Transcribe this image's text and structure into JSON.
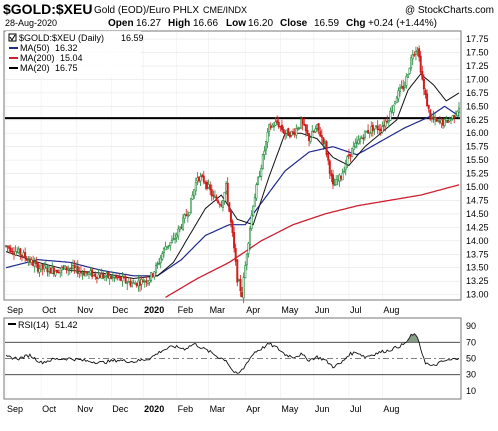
{
  "chart_data": {
    "type": "candlestick",
    "symbol": "$GOLD:$XEU",
    "description": "Gold (EOD)/Euro PHLX",
    "exchange": "CME/INDX",
    "source": "@ StockCharts.com",
    "date": "28-Aug-2020",
    "quote": {
      "open": "16.27",
      "high": "16.66",
      "low": "16.20",
      "close": "16.59",
      "chg": "+0.24 (+1.44%)"
    },
    "labels": {
      "open": "Open",
      "high": "High",
      "low": "Low",
      "close": "Close",
      "chg": "Chg"
    },
    "legend": [
      {
        "name": "$GOLD:$XEU (Daily)",
        "value": "16.59",
        "color": "#000000"
      },
      {
        "name": "MA(50)",
        "value": "16.32",
        "color": "#1f2a8c"
      },
      {
        "name": "MA(200)",
        "value": "15.04",
        "color": "#cc1f2f"
      },
      {
        "name": "MA(20)",
        "value": "16.75",
        "color": "#000000"
      }
    ],
    "price_axis": {
      "ylim": [
        12.9,
        17.9
      ],
      "ticks": [
        13.0,
        13.25,
        13.5,
        13.75,
        14.0,
        14.25,
        14.5,
        14.75,
        15.0,
        15.25,
        15.5,
        15.75,
        16.0,
        16.25,
        16.5,
        16.75,
        17.0,
        17.25,
        17.5,
        17.75
      ]
    },
    "horizontal_line": 16.28,
    "x_axis": {
      "labels": [
        "Sep",
        "Oct",
        "Nov",
        "Dec",
        "2020",
        "Feb",
        "Mar",
        "Apr",
        "May",
        "Jun",
        "Jul",
        "Aug"
      ],
      "bold": [
        "2020"
      ]
    },
    "price_anchors": [
      [
        0,
        13.9
      ],
      [
        10,
        13.75
      ],
      [
        20,
        13.5
      ],
      [
        30,
        13.45
      ],
      [
        40,
        13.5
      ],
      [
        50,
        13.4
      ],
      [
        60,
        13.35
      ],
      [
        70,
        13.3
      ],
      [
        80,
        13.2
      ],
      [
        90,
        13.3
      ],
      [
        95,
        13.55
      ],
      [
        100,
        13.9
      ],
      [
        105,
        14.0
      ],
      [
        110,
        14.3
      ],
      [
        115,
        14.6
      ],
      [
        120,
        15.2
      ],
      [
        125,
        15.1
      ],
      [
        130,
        14.8
      ],
      [
        135,
        14.7
      ],
      [
        138,
        15.0
      ],
      [
        142,
        14.1
      ],
      [
        145,
        13.3
      ],
      [
        148,
        13.0
      ],
      [
        151,
        13.8
      ],
      [
        155,
        14.7
      ],
      [
        160,
        15.4
      ],
      [
        165,
        16.1
      ],
      [
        170,
        16.2
      ],
      [
        175,
        16.0
      ],
      [
        180,
        16.0
      ],
      [
        185,
        16.2
      ],
      [
        190,
        15.9
      ],
      [
        195,
        16.1
      ],
      [
        200,
        15.8
      ],
      [
        205,
        15.0
      ],
      [
        210,
        15.2
      ],
      [
        215,
        15.6
      ],
      [
        220,
        15.8
      ],
      [
        225,
        16.0
      ],
      [
        230,
        16.1
      ],
      [
        235,
        16.1
      ],
      [
        240,
        16.3
      ],
      [
        245,
        16.7
      ],
      [
        250,
        16.9
      ],
      [
        255,
        17.5
      ],
      [
        258,
        17.6
      ],
      [
        262,
        16.8
      ],
      [
        266,
        16.3
      ],
      [
        270,
        16.2
      ],
      [
        275,
        16.2
      ],
      [
        280,
        16.3
      ],
      [
        284,
        16.5
      ]
    ],
    "ma20_anchors": [
      [
        0,
        13.8
      ],
      [
        20,
        13.6
      ],
      [
        40,
        13.45
      ],
      [
        60,
        13.4
      ],
      [
        80,
        13.3
      ],
      [
        95,
        13.35
      ],
      [
        105,
        13.6
      ],
      [
        115,
        14.1
      ],
      [
        125,
        14.6
      ],
      [
        135,
        14.85
      ],
      [
        145,
        14.4
      ],
      [
        155,
        14.3
      ],
      [
        165,
        15.2
      ],
      [
        175,
        16.0
      ],
      [
        185,
        16.0
      ],
      [
        195,
        15.9
      ],
      [
        205,
        15.55
      ],
      [
        215,
        15.4
      ],
      [
        225,
        15.75
      ],
      [
        235,
        16.0
      ],
      [
        245,
        16.25
      ],
      [
        252,
        16.8
      ],
      [
        260,
        17.1
      ],
      [
        268,
        16.9
      ],
      [
        276,
        16.6
      ],
      [
        284,
        16.75
      ]
    ],
    "ma50_anchors": [
      [
        0,
        13.5
      ],
      [
        20,
        13.65
      ],
      [
        40,
        13.6
      ],
      [
        60,
        13.45
      ],
      [
        80,
        13.35
      ],
      [
        95,
        13.35
      ],
      [
        110,
        13.65
      ],
      [
        125,
        14.1
      ],
      [
        140,
        14.3
      ],
      [
        150,
        14.3
      ],
      [
        160,
        14.7
      ],
      [
        175,
        15.3
      ],
      [
        190,
        15.65
      ],
      [
        205,
        15.75
      ],
      [
        220,
        15.6
      ],
      [
        235,
        15.85
      ],
      [
        250,
        16.1
      ],
      [
        265,
        16.3
      ],
      [
        275,
        16.5
      ],
      [
        284,
        16.32
      ]
    ],
    "ma200_anchors": [
      [
        100,
        12.95
      ],
      [
        120,
        13.3
      ],
      [
        140,
        13.6
      ],
      [
        160,
        14.0
      ],
      [
        180,
        14.3
      ],
      [
        200,
        14.5
      ],
      [
        220,
        14.65
      ],
      [
        240,
        14.75
      ],
      [
        260,
        14.85
      ],
      [
        284,
        15.04
      ]
    ],
    "rsi": {
      "label": "RSI(14)",
      "value": "51.42",
      "ylim": [
        0,
        100
      ],
      "levels": [
        70,
        30
      ],
      "centerline": 50,
      "ticks": [
        90,
        70,
        50,
        30,
        10
      ],
      "anchors": [
        [
          0,
          52
        ],
        [
          8,
          50
        ],
        [
          15,
          54
        ],
        [
          22,
          45
        ],
        [
          30,
          49
        ],
        [
          40,
          50
        ],
        [
          50,
          47
        ],
        [
          60,
          45
        ],
        [
          70,
          48
        ],
        [
          80,
          46
        ],
        [
          90,
          50
        ],
        [
          98,
          60
        ],
        [
          105,
          65
        ],
        [
          112,
          62
        ],
        [
          118,
          68
        ],
        [
          123,
          63
        ],
        [
          128,
          58
        ],
        [
          133,
          52
        ],
        [
          138,
          48
        ],
        [
          142,
          35
        ],
        [
          145,
          30
        ],
        [
          149,
          38
        ],
        [
          152,
          48
        ],
        [
          156,
          58
        ],
        [
          160,
          62
        ],
        [
          165,
          68
        ],
        [
          170,
          63
        ],
        [
          175,
          55
        ],
        [
          180,
          52
        ],
        [
          185,
          55
        ],
        [
          190,
          48
        ],
        [
          195,
          52
        ],
        [
          200,
          48
        ],
        [
          205,
          40
        ],
        [
          210,
          44
        ],
        [
          215,
          55
        ],
        [
          220,
          58
        ],
        [
          225,
          52
        ],
        [
          230,
          55
        ],
        [
          235,
          58
        ],
        [
          240,
          60
        ],
        [
          245,
          64
        ],
        [
          250,
          68
        ],
        [
          254,
          78
        ],
        [
          257,
          80
        ],
        [
          260,
          62
        ],
        [
          263,
          45
        ],
        [
          267,
          40
        ],
        [
          271,
          44
        ],
        [
          275,
          47
        ],
        [
          279,
          48
        ],
        [
          284,
          51.42
        ]
      ]
    }
  }
}
